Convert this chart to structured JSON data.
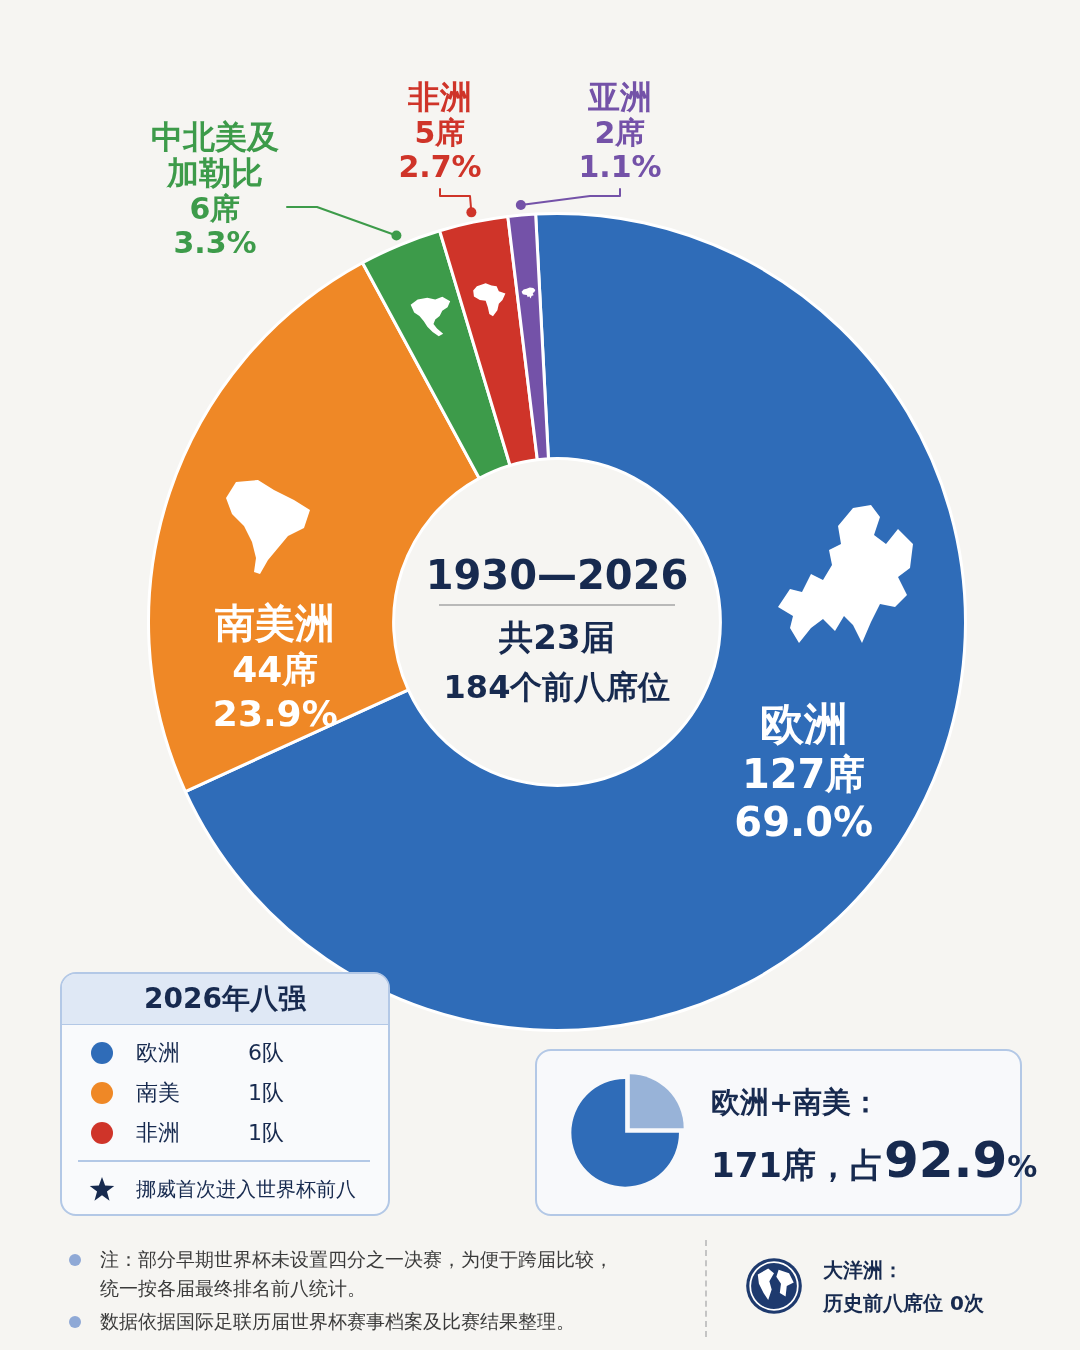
{
  "chart_data": [
    {
      "type": "donut",
      "title": "1930—2026",
      "subtitle": "共23届\n184个前八席位",
      "categories": [
        "欧洲",
        "南美洲",
        "中北美及加勒比",
        "非洲",
        "亚洲"
      ],
      "values": [
        127,
        44,
        6,
        5,
        2
      ],
      "colors": [
        "#2f6cb8",
        "#ef8826",
        "#3d9b4a",
        "#cf3429",
        "#7452a8"
      ],
      "value_labels": [
        "127席\n69.0%",
        "44席\n23.9%",
        "6席\n3.3%",
        "5席\n2.7%",
        "2席\n1.1%"
      ],
      "annotations": [
        "注：部分早期世界杯未设置四分之一决赛，为便于跨届比较，统一按各届最终排名前八统计。",
        "数据依据国际足联历届世界杯赛事档案及比赛结果整理。"
      ]
    },
    {
      "type": "other",
      "title": "2026年八强",
      "categories": [
        "欧洲",
        "南美",
        "非洲"
      ],
      "colors": [
        "#2f6cb8",
        "#ef8826",
        "#cf3429"
      ],
      "value_labels": [
        "6队",
        "1队",
        "1队"
      ],
      "annotations": [
        "挪威首次进入世界杯前八"
      ]
    },
    {
      "type": "other",
      "title": "欧洲+南美：",
      "annotations": [
        "171席，占92.9%"
      ]
    },
    {
      "type": "other",
      "title": "大洋洲：",
      "annotations": [
        "历史前八席位 0次"
      ]
    }
  ]
}
